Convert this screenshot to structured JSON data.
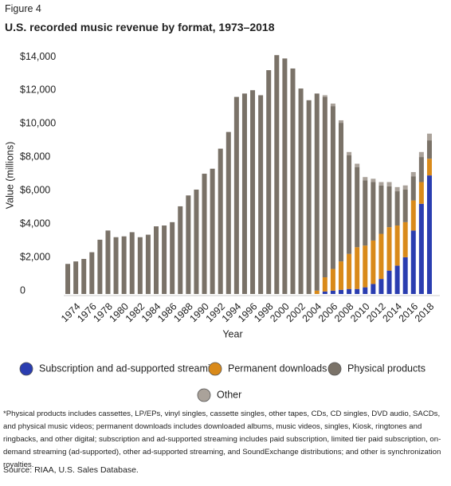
{
  "figure_label": "Figure 4",
  "chart_data": {
    "type": "stacked_bar",
    "title": "U.S. recorded music revenue by format, 1973–2018",
    "y_label": "Value (millions)",
    "x_label": "Year",
    "categories": [
      null,
      "1974",
      null,
      "1976",
      null,
      "1978",
      null,
      "1980",
      null,
      "1982",
      null,
      "1984",
      null,
      "1986",
      null,
      "1988",
      null,
      "1990",
      null,
      "1992",
      null,
      "1994",
      null,
      "1996",
      null,
      "1998",
      null,
      "2000",
      null,
      "2002",
      null,
      "2004",
      null,
      "2006",
      null,
      "2008",
      null,
      "2010",
      null,
      "2012",
      null,
      "2014",
      null,
      "2016",
      null,
      "2018"
    ],
    "series": [
      {
        "name": "Subscription and ad-supported streaming",
        "color": "#2a3db0",
        "values": [
          0,
          0,
          0,
          0,
          0,
          0,
          0,
          0,
          0,
          0,
          0,
          0,
          0,
          0,
          0,
          0,
          0,
          0,
          0,
          0,
          0,
          0,
          0,
          0,
          0,
          0,
          0,
          0,
          0,
          0,
          0,
          0,
          150,
          200,
          250,
          300,
          300,
          400,
          600,
          900,
          1400,
          1700,
          2200,
          3800,
          5400,
          7100
        ]
      },
      {
        "name": "Permanent downloads",
        "color": "#d98a1a",
        "values": [
          0,
          0,
          0,
          0,
          0,
          0,
          0,
          0,
          0,
          0,
          0,
          0,
          0,
          0,
          0,
          0,
          0,
          0,
          0,
          0,
          0,
          0,
          0,
          0,
          0,
          0,
          0,
          0,
          0,
          0,
          0,
          200,
          850,
          1300,
          1700,
          2100,
          2500,
          2500,
          2600,
          2700,
          2600,
          2400,
          2100,
          1800,
          1300,
          1000
        ]
      },
      {
        "name": "Physical products",
        "color": "#7a7268",
        "values": [
          1800,
          1950,
          2100,
          2500,
          3250,
          3800,
          3400,
          3450,
          3700,
          3400,
          3550,
          4050,
          4100,
          4300,
          5250,
          5900,
          6250,
          7200,
          7500,
          8700,
          9700,
          11800,
          12000,
          12200,
          11900,
          13400,
          14300,
          14100,
          13500,
          12300,
          11600,
          11800,
          10800,
          9750,
          8300,
          5900,
          4800,
          3900,
          3500,
          2900,
          2450,
          2050,
          1950,
          1450,
          1500,
          1100
        ]
      },
      {
        "name": "Other",
        "color": "#aaa29a",
        "values": [
          0,
          0,
          0,
          0,
          0,
          0,
          0,
          0,
          0,
          0,
          0,
          0,
          0,
          0,
          0,
          0,
          0,
          0,
          0,
          0,
          0,
          0,
          0,
          0,
          0,
          0,
          0,
          0,
          0,
          0,
          0,
          0,
          100,
          150,
          150,
          200,
          200,
          200,
          200,
          200,
          250,
          250,
          250,
          250,
          300,
          400
        ]
      }
    ],
    "ylim": [
      0,
      14500
    ],
    "yticks": [
      0,
      {
        "value": 2000,
        "label": "$2,000"
      },
      {
        "value": 4000,
        "label": "$4,000"
      },
      {
        "value": 6000,
        "label": "$6,000"
      },
      {
        "value": 8000,
        "label": "$8,000"
      },
      {
        "value": 10000,
        "label": "$10,000"
      },
      {
        "value": 12000,
        "label": "$12,000"
      },
      {
        "value": 14000,
        "label": "$14,000"
      }
    ]
  },
  "footnote": "*Physical products includes cassettes, LP/EPs, vinyl singles, cassette singles, other tapes, CDs, CD singles, DVD audio, SACDs, and physical music videos; permanent downloads includes downloaded albums, music videos, singles, Kiosk, ringtones and ringbacks, and other digital; subscription and ad-supported streaming includes paid subscription, limited tier paid subscription, on-demand streaming (ad-supported), other ad-supported streaming, and SoundExchange distributions; and other is synchronization royalties.",
  "source": "Source: RIAA, U.S. Sales Database."
}
